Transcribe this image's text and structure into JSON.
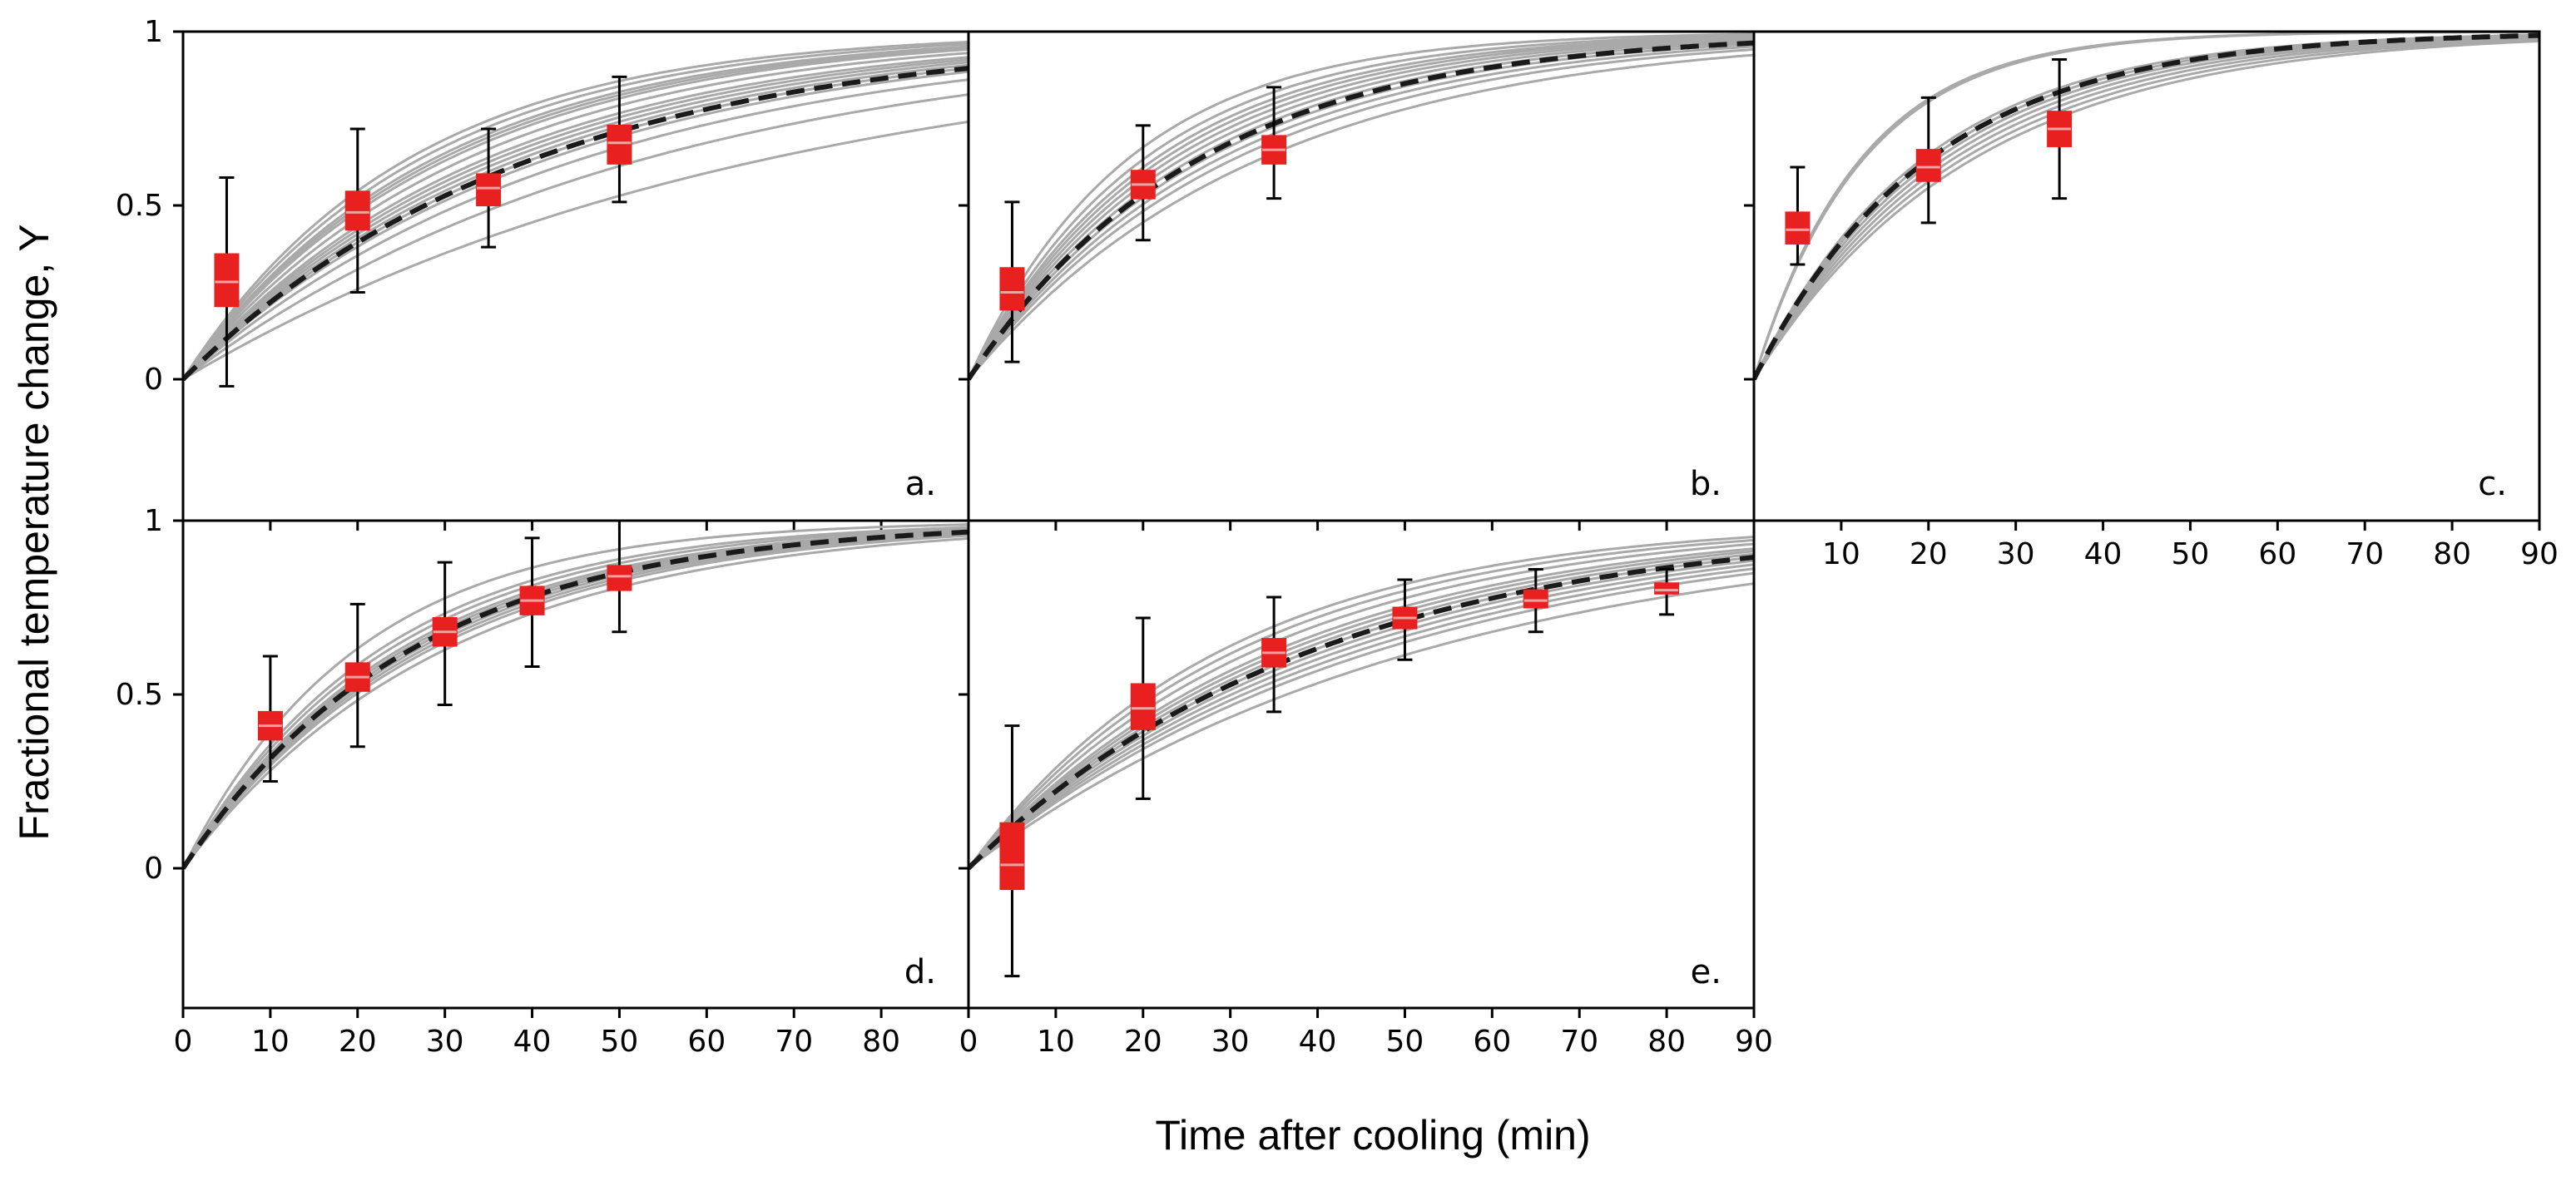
{
  "figure": {
    "ylabel": "Fractional temperature change, Y",
    "xlabel": "Time after cooling (min)"
  },
  "colors": {
    "individual_fit": "#a9a9a9",
    "mean_fit": "#1a1a1a",
    "box_fill": "#e8201f",
    "median_line": "#f0a3a3",
    "whisker": "#000000"
  },
  "chart_data": [
    {
      "type": "line",
      "panel": "a.",
      "xlim": [
        0,
        90
      ],
      "ylim": [
        -0.4,
        1
      ],
      "y_ticks": [
        0,
        0.5,
        1
      ],
      "y_tick_labels": [
        "0",
        "0.5",
        "1"
      ],
      "x_ticks": [
        0,
        10,
        20,
        30,
        40,
        50,
        60,
        70,
        80
      ],
      "x_tick_labels": [],
      "individual_fit_rates": [
        0.015,
        0.019,
        0.022,
        0.024,
        0.025,
        0.026,
        0.027,
        0.028,
        0.029,
        0.031,
        0.033,
        0.034,
        0.035,
        0.037,
        0.039
      ],
      "mean_fit_rate": 0.025,
      "boxes": [
        {
          "x": 5,
          "median": 0.28,
          "q1": 0.21,
          "q3": 0.36,
          "whisker_low": -0.02,
          "whisker_high": 0.58
        },
        {
          "x": 20,
          "median": 0.48,
          "q1": 0.43,
          "q3": 0.54,
          "whisker_low": 0.25,
          "whisker_high": 0.72
        },
        {
          "x": 35,
          "median": 0.55,
          "q1": 0.5,
          "q3": 0.59,
          "whisker_low": 0.38,
          "whisker_high": 0.72
        },
        {
          "x": 50,
          "median": 0.68,
          "q1": 0.62,
          "q3": 0.73,
          "whisker_low": 0.51,
          "whisker_high": 0.87
        }
      ]
    },
    {
      "type": "line",
      "panel": "b.",
      "xlim": [
        0,
        90
      ],
      "ylim": [
        -0.4,
        1
      ],
      "y_ticks": [
        0,
        0.5,
        1
      ],
      "y_tick_labels": [],
      "x_ticks": [
        0,
        10,
        20,
        30,
        40,
        50,
        60,
        70,
        80
      ],
      "x_tick_labels": [],
      "individual_fit_rates": [
        0.03,
        0.033,
        0.035,
        0.037,
        0.039,
        0.041,
        0.043,
        0.045,
        0.047,
        0.05,
        0.055
      ],
      "mean_fit_rate": 0.038,
      "boxes": [
        {
          "x": 5,
          "median": 0.25,
          "q1": 0.2,
          "q3": 0.32,
          "whisker_low": 0.05,
          "whisker_high": 0.51
        },
        {
          "x": 20,
          "median": 0.56,
          "q1": 0.52,
          "q3": 0.6,
          "whisker_low": 0.4,
          "whisker_high": 0.73
        },
        {
          "x": 35,
          "median": 0.66,
          "q1": 0.62,
          "q3": 0.7,
          "whisker_low": 0.52,
          "whisker_high": 0.84
        }
      ]
    },
    {
      "type": "line",
      "panel": "c.",
      "xlim": [
        0,
        90
      ],
      "ylim": [
        -0.4,
        1
      ],
      "y_ticks": [
        0,
        0.5,
        1
      ],
      "y_tick_labels": [],
      "x_ticks": [
        10,
        20,
        30,
        40,
        50,
        60,
        70,
        80,
        90
      ],
      "x_tick_labels": [
        "10",
        "20",
        "30",
        "40",
        "50",
        "60",
        "70",
        "80",
        "90"
      ],
      "individual_fit_rates": [
        0.04,
        0.042,
        0.044,
        0.046,
        0.048,
        0.05,
        0.052,
        0.08,
        0.082
      ],
      "mean_fit_rate": 0.05,
      "boxes": [
        {
          "x": 5,
          "median": 0.43,
          "q1": 0.39,
          "q3": 0.48,
          "whisker_low": 0.33,
          "whisker_high": 0.61
        },
        {
          "x": 20,
          "median": 0.61,
          "q1": 0.57,
          "q3": 0.66,
          "whisker_low": 0.45,
          "whisker_high": 0.81
        },
        {
          "x": 35,
          "median": 0.72,
          "q1": 0.67,
          "q3": 0.77,
          "whisker_low": 0.52,
          "whisker_high": 0.92
        }
      ]
    },
    {
      "type": "line",
      "panel": "d.",
      "xlim": [
        0,
        90
      ],
      "ylim": [
        -0.4,
        1
      ],
      "y_ticks": [
        0,
        0.5,
        1
      ],
      "y_tick_labels": [
        "0",
        "0.5",
        "1"
      ],
      "x_ticks": [
        0,
        10,
        20,
        30,
        40,
        50,
        60,
        70,
        80
      ],
      "x_tick_labels": [
        "0",
        "10",
        "20",
        "30",
        "40",
        "50",
        "60",
        "70",
        "80"
      ],
      "individual_fit_rates": [
        0.033,
        0.035,
        0.036,
        0.037,
        0.038,
        0.039,
        0.04,
        0.042,
        0.044,
        0.05
      ],
      "mean_fit_rate": 0.038,
      "boxes": [
        {
          "x": 10,
          "median": 0.41,
          "q1": 0.37,
          "q3": 0.45,
          "whisker_low": 0.25,
          "whisker_high": 0.61
        },
        {
          "x": 20,
          "median": 0.55,
          "q1": 0.51,
          "q3": 0.59,
          "whisker_low": 0.35,
          "whisker_high": 0.76
        },
        {
          "x": 30,
          "median": 0.68,
          "q1": 0.64,
          "q3": 0.72,
          "whisker_low": 0.47,
          "whisker_high": 0.88
        },
        {
          "x": 40,
          "median": 0.77,
          "q1": 0.73,
          "q3": 0.81,
          "whisker_low": 0.58,
          "whisker_high": 0.95
        },
        {
          "x": 50,
          "median": 0.84,
          "q1": 0.8,
          "q3": 0.87,
          "whisker_low": 0.68,
          "whisker_high": 1.0
        }
      ]
    },
    {
      "type": "line",
      "panel": "e.",
      "xlim": [
        0,
        90
      ],
      "ylim": [
        -0.4,
        1
      ],
      "y_ticks": [
        0,
        0.5,
        1
      ],
      "y_tick_labels": [],
      "x_ticks": [
        0,
        10,
        20,
        30,
        40,
        50,
        60,
        70,
        80,
        90
      ],
      "x_tick_labels": [
        "0",
        "10",
        "20",
        "30",
        "40",
        "50",
        "60",
        "70",
        "80",
        "90"
      ],
      "individual_fit_rates": [
        0.019,
        0.021,
        0.022,
        0.023,
        0.024,
        0.025,
        0.026,
        0.027,
        0.028,
        0.03,
        0.032,
        0.034
      ],
      "mean_fit_rate": 0.025,
      "boxes": [
        {
          "x": 5,
          "median": 0.01,
          "q1": -0.06,
          "q3": 0.13,
          "whisker_low": -0.31,
          "whisker_high": 0.41
        },
        {
          "x": 20,
          "median": 0.46,
          "q1": 0.4,
          "q3": 0.53,
          "whisker_low": 0.2,
          "whisker_high": 0.72
        },
        {
          "x": 35,
          "median": 0.62,
          "q1": 0.58,
          "q3": 0.66,
          "whisker_low": 0.45,
          "whisker_high": 0.78
        },
        {
          "x": 50,
          "median": 0.72,
          "q1": 0.69,
          "q3": 0.75,
          "whisker_low": 0.6,
          "whisker_high": 0.83
        },
        {
          "x": 65,
          "median": 0.77,
          "q1": 0.75,
          "q3": 0.8,
          "whisker_low": 0.68,
          "whisker_high": 0.86
        },
        {
          "x": 80,
          "median": 0.8,
          "q1": 0.79,
          "q3": 0.82,
          "whisker_low": 0.73,
          "whisker_high": 0.86
        }
      ]
    }
  ]
}
